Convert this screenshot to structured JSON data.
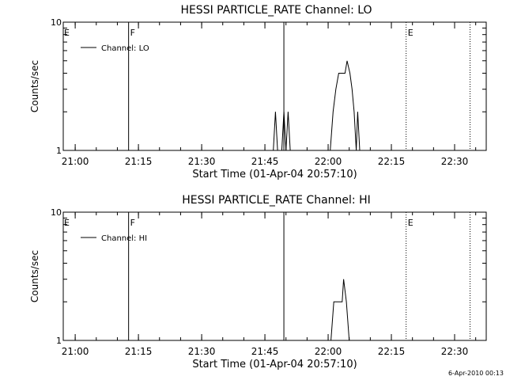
{
  "footer": {
    "timestamp": "6-Apr-2010 00:13"
  },
  "style": {
    "foreground": "#000000",
    "background": "#ffffff"
  },
  "chart_data": [
    {
      "type": "line",
      "title": "HESSI PARTICLE_RATE Channel: LO",
      "xlabel": "Start Time (01-Apr-04 20:57:10)",
      "ylabel": "Counts/sec",
      "yscale": "log",
      "xlim": [
        "20:57:10",
        "22:37:30"
      ],
      "ylim": [
        1,
        10
      ],
      "xticks": [
        "21:00",
        "21:15",
        "21:30",
        "21:45",
        "22:00",
        "22:15",
        "22:30"
      ],
      "yticks": [
        "1",
        "10"
      ],
      "legend": {
        "position": "top-left",
        "entries": [
          "Channel: LO"
        ]
      },
      "grid": false,
      "markers": [
        {
          "time": "21:12:40",
          "style": "solid",
          "label": "F"
        },
        {
          "time": "21:49:30",
          "style": "solid",
          "label": ""
        },
        {
          "time": "22:18:30",
          "style": "dotted",
          "label": "E"
        },
        {
          "time": "22:33:40",
          "style": "dotted",
          "label": ""
        }
      ],
      "edge_label": "E",
      "series": [
        {
          "name": "Channel: LO",
          "points": [
            [
              "21:47:00",
              1
            ],
            [
              "21:47:30",
              2
            ],
            [
              "21:48:00",
              1
            ],
            [
              "21:49:00",
              1
            ],
            [
              "21:49:30",
              2
            ],
            [
              "21:50:00",
              1
            ],
            [
              "21:50:30",
              2
            ],
            [
              "21:51:00",
              1
            ],
            [
              "22:00:30",
              1
            ],
            [
              "22:01:10",
              2
            ],
            [
              "22:01:50",
              3
            ],
            [
              "22:02:30",
              4
            ],
            [
              "22:04:00",
              4
            ],
            [
              "22:04:30",
              5
            ],
            [
              "22:05:10",
              4
            ],
            [
              "22:05:40",
              3
            ],
            [
              "22:06:10",
              2
            ],
            [
              "22:06:40",
              1
            ],
            [
              "22:07:00",
              2
            ],
            [
              "22:07:30",
              1
            ]
          ]
        }
      ]
    },
    {
      "type": "line",
      "title": "HESSI PARTICLE_RATE Channel: HI",
      "xlabel": "Start Time (01-Apr-04 20:57:10)",
      "ylabel": "Counts/sec",
      "yscale": "log",
      "xlim": [
        "20:57:10",
        "22:37:30"
      ],
      "ylim": [
        1,
        10
      ],
      "xticks": [
        "21:00",
        "21:15",
        "21:30",
        "21:45",
        "22:00",
        "22:15",
        "22:30"
      ],
      "yticks": [
        "1",
        "10"
      ],
      "legend": {
        "position": "top-left",
        "entries": [
          "Channel: HI"
        ]
      },
      "grid": false,
      "markers": [
        {
          "time": "21:12:40",
          "style": "solid",
          "label": "F"
        },
        {
          "time": "21:49:30",
          "style": "solid",
          "label": ""
        },
        {
          "time": "22:18:30",
          "style": "dotted",
          "label": "E"
        },
        {
          "time": "22:33:40",
          "style": "dotted",
          "label": ""
        }
      ],
      "edge_label": "E",
      "series": [
        {
          "name": "Channel: HI",
          "points": [
            [
              "22:00:40",
              1
            ],
            [
              "22:01:20",
              2
            ],
            [
              "22:03:20",
              2
            ],
            [
              "22:03:40",
              3
            ],
            [
              "22:04:20",
              2
            ],
            [
              "22:05:00",
              1
            ]
          ]
        }
      ]
    }
  ]
}
